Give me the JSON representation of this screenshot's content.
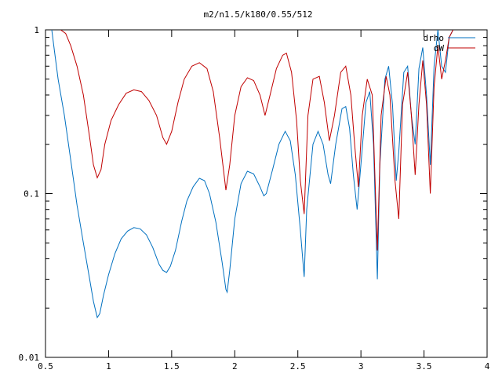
{
  "chart_data": {
    "type": "line",
    "title": "m2/n1.5/k180/0.55/512",
    "xlabel": "",
    "ylabel": "",
    "xlim": [
      0.5,
      4
    ],
    "ylim": [
      0.01,
      1
    ],
    "yscale": "log",
    "grid": false,
    "legend_position": "top-right",
    "xticks": [
      {
        "value": 0.5,
        "label": "0.5"
      },
      {
        "value": 1,
        "label": "1"
      },
      {
        "value": 1.5,
        "label": "1.5"
      },
      {
        "value": 2,
        "label": "2"
      },
      {
        "value": 2.5,
        "label": "2.5"
      },
      {
        "value": 3,
        "label": "3"
      },
      {
        "value": 3.5,
        "label": "3.5"
      },
      {
        "value": 4,
        "label": "4"
      }
    ],
    "yticks": [
      {
        "value": 0.01,
        "label": "0.01"
      },
      {
        "value": 0.1,
        "label": "0.1"
      },
      {
        "value": 1,
        "label": "1"
      }
    ],
    "series": [
      {
        "name": "drho",
        "color": "#0070c0",
        "points": [
          [
            0.55,
            1.0
          ],
          [
            0.57,
            0.75
          ],
          [
            0.6,
            0.5
          ],
          [
            0.65,
            0.3
          ],
          [
            0.7,
            0.16
          ],
          [
            0.75,
            0.085
          ],
          [
            0.8,
            0.05
          ],
          [
            0.85,
            0.03
          ],
          [
            0.88,
            0.022
          ],
          [
            0.91,
            0.0175
          ],
          [
            0.93,
            0.0185
          ],
          [
            0.96,
            0.024
          ],
          [
            1.0,
            0.032
          ],
          [
            1.05,
            0.043
          ],
          [
            1.1,
            0.053
          ],
          [
            1.15,
            0.059
          ],
          [
            1.2,
            0.062
          ],
          [
            1.25,
            0.061
          ],
          [
            1.3,
            0.056
          ],
          [
            1.35,
            0.047
          ],
          [
            1.4,
            0.037
          ],
          [
            1.43,
            0.034
          ],
          [
            1.46,
            0.033
          ],
          [
            1.49,
            0.036
          ],
          [
            1.53,
            0.045
          ],
          [
            1.58,
            0.068
          ],
          [
            1.62,
            0.09
          ],
          [
            1.67,
            0.11
          ],
          [
            1.72,
            0.124
          ],
          [
            1.76,
            0.12
          ],
          [
            1.8,
            0.1
          ],
          [
            1.85,
            0.067
          ],
          [
            1.9,
            0.038
          ],
          [
            1.93,
            0.026
          ],
          [
            1.94,
            0.025
          ],
          [
            1.96,
            0.034
          ],
          [
            2.0,
            0.07
          ],
          [
            2.05,
            0.115
          ],
          [
            2.1,
            0.137
          ],
          [
            2.15,
            0.132
          ],
          [
            2.2,
            0.11
          ],
          [
            2.23,
            0.097
          ],
          [
            2.25,
            0.1
          ],
          [
            2.3,
            0.14
          ],
          [
            2.35,
            0.2
          ],
          [
            2.4,
            0.24
          ],
          [
            2.44,
            0.21
          ],
          [
            2.48,
            0.13
          ],
          [
            2.52,
            0.06
          ],
          [
            2.55,
            0.031
          ],
          [
            2.57,
            0.08
          ],
          [
            2.62,
            0.2
          ],
          [
            2.66,
            0.24
          ],
          [
            2.7,
            0.2
          ],
          [
            2.74,
            0.13
          ],
          [
            2.76,
            0.115
          ],
          [
            2.8,
            0.2
          ],
          [
            2.85,
            0.33
          ],
          [
            2.88,
            0.34
          ],
          [
            2.91,
            0.25
          ],
          [
            2.94,
            0.13
          ],
          [
            2.97,
            0.08
          ],
          [
            3.0,
            0.15
          ],
          [
            3.04,
            0.36
          ],
          [
            3.07,
            0.42
          ],
          [
            3.1,
            0.2
          ],
          [
            3.13,
            0.03
          ],
          [
            3.15,
            0.15
          ],
          [
            3.19,
            0.5
          ],
          [
            3.22,
            0.6
          ],
          [
            3.25,
            0.35
          ],
          [
            3.28,
            0.12
          ],
          [
            3.3,
            0.18
          ],
          [
            3.34,
            0.55
          ],
          [
            3.37,
            0.6
          ],
          [
            3.4,
            0.3
          ],
          [
            3.43,
            0.2
          ],
          [
            3.46,
            0.58
          ],
          [
            3.49,
            0.78
          ],
          [
            3.52,
            0.4
          ],
          [
            3.55,
            0.15
          ],
          [
            3.58,
            0.6
          ],
          [
            3.61,
            1.0
          ],
          [
            3.64,
            0.6
          ],
          [
            3.67,
            0.55
          ],
          [
            3.7,
            0.9
          ],
          [
            3.73,
            1.0
          ]
        ]
      },
      {
        "name": "dW",
        "color": "#c00000",
        "points": [
          [
            0.62,
            1.0
          ],
          [
            0.66,
            0.95
          ],
          [
            0.7,
            0.8
          ],
          [
            0.75,
            0.6
          ],
          [
            0.8,
            0.4
          ],
          [
            0.85,
            0.22
          ],
          [
            0.88,
            0.15
          ],
          [
            0.91,
            0.125
          ],
          [
            0.94,
            0.14
          ],
          [
            0.97,
            0.2
          ],
          [
            1.02,
            0.28
          ],
          [
            1.08,
            0.35
          ],
          [
            1.14,
            0.41
          ],
          [
            1.2,
            0.43
          ],
          [
            1.26,
            0.42
          ],
          [
            1.32,
            0.37
          ],
          [
            1.38,
            0.3
          ],
          [
            1.43,
            0.22
          ],
          [
            1.46,
            0.2
          ],
          [
            1.5,
            0.24
          ],
          [
            1.55,
            0.36
          ],
          [
            1.6,
            0.5
          ],
          [
            1.66,
            0.6
          ],
          [
            1.72,
            0.63
          ],
          [
            1.78,
            0.58
          ],
          [
            1.83,
            0.42
          ],
          [
            1.88,
            0.22
          ],
          [
            1.93,
            0.105
          ],
          [
            1.96,
            0.15
          ],
          [
            2.0,
            0.3
          ],
          [
            2.05,
            0.45
          ],
          [
            2.1,
            0.51
          ],
          [
            2.15,
            0.49
          ],
          [
            2.2,
            0.4
          ],
          [
            2.24,
            0.3
          ],
          [
            2.28,
            0.4
          ],
          [
            2.33,
            0.58
          ],
          [
            2.38,
            0.7
          ],
          [
            2.41,
            0.72
          ],
          [
            2.45,
            0.55
          ],
          [
            2.49,
            0.28
          ],
          [
            2.52,
            0.12
          ],
          [
            2.55,
            0.075
          ],
          [
            2.58,
            0.3
          ],
          [
            2.62,
            0.5
          ],
          [
            2.67,
            0.52
          ],
          [
            2.71,
            0.36
          ],
          [
            2.75,
            0.21
          ],
          [
            2.79,
            0.3
          ],
          [
            2.84,
            0.55
          ],
          [
            2.88,
            0.6
          ],
          [
            2.92,
            0.4
          ],
          [
            2.95,
            0.2
          ],
          [
            2.98,
            0.11
          ],
          [
            3.01,
            0.3
          ],
          [
            3.05,
            0.5
          ],
          [
            3.09,
            0.4
          ],
          [
            3.13,
            0.045
          ],
          [
            3.16,
            0.3
          ],
          [
            3.2,
            0.52
          ],
          [
            3.23,
            0.4
          ],
          [
            3.27,
            0.12
          ],
          [
            3.3,
            0.07
          ],
          [
            3.33,
            0.35
          ],
          [
            3.37,
            0.55
          ],
          [
            3.4,
            0.3
          ],
          [
            3.43,
            0.13
          ],
          [
            3.46,
            0.35
          ],
          [
            3.49,
            0.65
          ],
          [
            3.52,
            0.35
          ],
          [
            3.55,
            0.1
          ],
          [
            3.58,
            0.45
          ],
          [
            3.61,
            0.8
          ],
          [
            3.64,
            0.5
          ],
          [
            3.67,
            0.65
          ],
          [
            3.7,
            0.9
          ],
          [
            3.73,
            1.0
          ]
        ]
      }
    ]
  }
}
